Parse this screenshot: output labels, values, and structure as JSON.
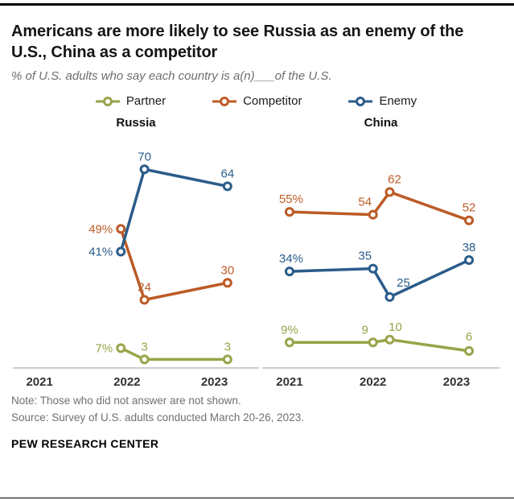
{
  "header": {
    "title": "Americans are more likely to see Russia as an enemy of the U.S., China as a competitor",
    "subtitle": "% of U.S. adults who say each country is a(n)___of the U.S."
  },
  "legend": {
    "position": "top-center",
    "items": [
      {
        "label": "Partner",
        "color": "#99a349"
      },
      {
        "label": "Competitor",
        "color": "#bc5b27"
      },
      {
        "label": "Enemy",
        "color": "#2b5c8a"
      }
    ]
  },
  "chart_data": [
    {
      "type": "line",
      "title": "Russia",
      "x_domain": [
        2020.75,
        2023.4
      ],
      "ylim": [
        0,
        80
      ],
      "grid": false,
      "x_ticks": [
        {
          "label": "2021",
          "x": 2021
        },
        {
          "label": "2022",
          "x": 2022
        },
        {
          "label": "2023",
          "x": 2023
        }
      ],
      "series": [
        {
          "name": "Partner",
          "color": "#99a349",
          "points": [
            {
              "x": 2021.93,
              "v": 7,
              "label": "7%",
              "anchor": "end",
              "dx": -10,
              "dy": 5
            },
            {
              "x": 2022.2,
              "v": 3,
              "label": "3",
              "anchor": "middle",
              "dx": 0,
              "dy": -11
            },
            {
              "x": 2023.15,
              "v": 3,
              "label": "3",
              "anchor": "middle",
              "dx": 0,
              "dy": -11
            }
          ]
        },
        {
          "name": "Competitor",
          "color": "#bc5b27",
          "points": [
            {
              "x": 2021.93,
              "v": 49,
              "label": "49%",
              "anchor": "end",
              "dx": -10,
              "dy": 5
            },
            {
              "x": 2022.2,
              "v": 24,
              "label": "24",
              "anchor": "middle",
              "dx": 0,
              "dy": -11
            },
            {
              "x": 2023.15,
              "v": 30,
              "label": "30",
              "anchor": "middle",
              "dx": 0,
              "dy": -11
            }
          ]
        },
        {
          "name": "Enemy",
          "color": "#2b5c8a",
          "points": [
            {
              "x": 2021.93,
              "v": 41,
              "label": "41%",
              "anchor": "end",
              "dx": -10,
              "dy": 5
            },
            {
              "x": 2022.2,
              "v": 70,
              "label": "70",
              "anchor": "middle",
              "dx": 0,
              "dy": -11
            },
            {
              "x": 2023.15,
              "v": 64,
              "label": "64",
              "anchor": "middle",
              "dx": 0,
              "dy": -11
            }
          ]
        }
      ]
    },
    {
      "type": "line",
      "title": "China",
      "x_domain": [
        2020.75,
        2023.4
      ],
      "ylim": [
        0,
        80
      ],
      "grid": false,
      "x_ticks": [
        {
          "label": "2021",
          "x": 2021
        },
        {
          "label": "2022",
          "x": 2022
        },
        {
          "label": "2023",
          "x": 2023
        }
      ],
      "series": [
        {
          "name": "Partner",
          "color": "#99a349",
          "points": [
            {
              "x": 2021.0,
              "v": 9,
              "label": "9%",
              "anchor": "middle",
              "dx": 0,
              "dy": -11
            },
            {
              "x": 2022.0,
              "v": 9,
              "label": "9",
              "anchor": "middle",
              "dx": -10,
              "dy": -11
            },
            {
              "x": 2022.2,
              "v": 10,
              "label": "10",
              "anchor": "middle",
              "dx": 7,
              "dy": -11
            },
            {
              "x": 2023.15,
              "v": 6,
              "label": "6",
              "anchor": "middle",
              "dx": 0,
              "dy": -13
            }
          ]
        },
        {
          "name": "Competitor",
          "color": "#bc5b27",
          "points": [
            {
              "x": 2021.0,
              "v": 55,
              "label": "55%",
              "anchor": "middle",
              "dx": 2,
              "dy": -11
            },
            {
              "x": 2022.0,
              "v": 54,
              "label": "54",
              "anchor": "middle",
              "dx": -10,
              "dy": -11
            },
            {
              "x": 2022.2,
              "v": 62,
              "label": "62",
              "anchor": "middle",
              "dx": 6,
              "dy": -11
            },
            {
              "x": 2023.15,
              "v": 52,
              "label": "52",
              "anchor": "middle",
              "dx": 0,
              "dy": -11
            }
          ]
        },
        {
          "name": "Enemy",
          "color": "#2b5c8a",
          "points": [
            {
              "x": 2021.0,
              "v": 34,
              "label": "34%",
              "anchor": "middle",
              "dx": 2,
              "dy": -11
            },
            {
              "x": 2022.0,
              "v": 35,
              "label": "35",
              "anchor": "middle",
              "dx": -10,
              "dy": -11
            },
            {
              "x": 2022.2,
              "v": 25,
              "label": "25",
              "anchor": "middle",
              "dx": 17,
              "dy": -13
            },
            {
              "x": 2023.15,
              "v": 38,
              "label": "38",
              "anchor": "middle",
              "dx": 0,
              "dy": -11
            }
          ]
        }
      ]
    }
  ],
  "footer": {
    "note": "Note: Those who did not answer are not shown.",
    "source": "Source: Survey of U.S. adults conducted March 20-26, 2023.",
    "brand": "PEW RESEARCH CENTER"
  }
}
